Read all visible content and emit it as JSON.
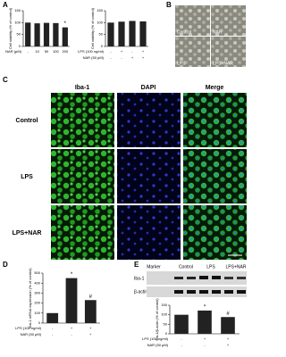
{
  "chart_data": [
    {
      "type": "bar",
      "panel": "A",
      "ylabel": "Cell viability (% of control)",
      "ylim": [
        0,
        150
      ],
      "yticks": [
        0,
        50,
        100,
        150
      ],
      "values": [
        100,
        97,
        99,
        98,
        80
      ],
      "color": "#222222",
      "conditions": [
        {
          "label": "NAR (μM)",
          "marks": [
            "-",
            "10",
            "50",
            "100",
            "200"
          ]
        }
      ],
      "annotations": [
        {
          "index": 4,
          "text": "*"
        }
      ]
    },
    {
      "type": "bar",
      "ylabel": "Cell viability (% of control)",
      "ylim": [
        0,
        150
      ],
      "yticks": [
        0,
        50,
        100,
        150
      ],
      "values": [
        100,
        104,
        107,
        105
      ],
      "color": "#222222",
      "conditions": [
        {
          "label": "LPS (100 ng/ml)",
          "marks": [
            "-",
            "+",
            "-",
            "+"
          ]
        },
        {
          "label": "NAR (50 μM)",
          "marks": [
            "-",
            "-",
            "+",
            "+"
          ]
        }
      ]
    },
    {
      "type": "bar",
      "panel": "D",
      "ylabel": "Iba-1 mRNA expression (% of control)",
      "ylim": [
        0,
        500
      ],
      "yticks": [
        0,
        100,
        200,
        300,
        400,
        500
      ],
      "values": [
        100,
        450,
        230
      ],
      "color": "#222222",
      "conditions": [
        {
          "label": "LPS (100 ng/ml)",
          "marks": [
            "-",
            "+",
            "+"
          ]
        },
        {
          "label": "NAR (50 μM)",
          "marks": [
            "-",
            "-",
            "+"
          ]
        }
      ],
      "annotations": [
        {
          "index": 1,
          "text": "*"
        },
        {
          "index": 2,
          "text": "#"
        }
      ]
    },
    {
      "type": "bar",
      "ylabel": "Iba-1/β-actin (% of control)",
      "ylim": [
        0,
        150
      ],
      "yticks": [
        0,
        50,
        100,
        150
      ],
      "values": [
        100,
        122,
        88
      ],
      "color": "#222222",
      "conditions": [
        {
          "label": "LPS (100 ng/ml)",
          "marks": [
            "-",
            "+",
            "+"
          ]
        },
        {
          "label": "NAR (50 μM)",
          "marks": [
            "-",
            "-",
            "+"
          ]
        }
      ],
      "annotations": [
        {
          "index": 1,
          "text": "*"
        },
        {
          "index": 2,
          "text": "#"
        }
      ]
    }
  ],
  "panel_b": {
    "label": "B",
    "images": [
      "Control",
      "NAR",
      "LPS",
      "LPS+NAR"
    ]
  },
  "panel_c": {
    "label": "C",
    "columns": [
      "Iba-1",
      "DAPI",
      "Merge"
    ],
    "rows": [
      "Control",
      "LPS",
      "LPS+NAR"
    ]
  },
  "panel_e": {
    "label": "E",
    "lanes": [
      "Marker",
      "Control",
      "LPS",
      "LPS+NAR"
    ],
    "bands": [
      "Iba-1",
      "β-actin"
    ]
  }
}
